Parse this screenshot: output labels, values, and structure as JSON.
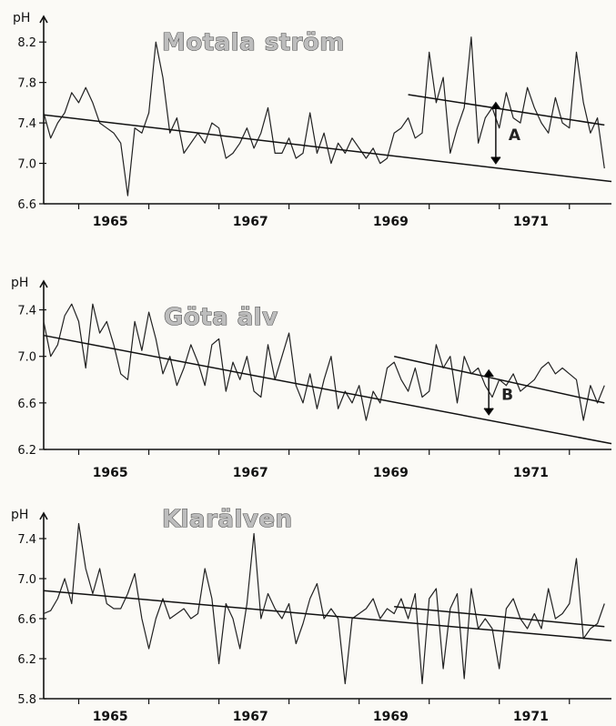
{
  "chart_data": [
    {
      "type": "line",
      "title": "Motala ström",
      "ylabel": "pH",
      "ylim": [
        6.6,
        8.4
      ],
      "yticks": [
        6.6,
        7.0,
        7.4,
        7.8,
        8.2
      ],
      "ytick_labels": [
        "6.6",
        "7.0",
        "7.4",
        "7.8",
        "8.2"
      ],
      "xlim": [
        1964.5,
        1972.6
      ],
      "xticks": [
        1965,
        1967,
        1969,
        1971
      ],
      "xtick_labels": [
        "1965",
        "1967",
        "1969",
        "1971"
      ],
      "series": [
        {
          "x": [
            1964.5,
            1964.6,
            1964.7,
            1964.8,
            1964.9,
            1965.0,
            1965.1,
            1965.2,
            1965.3,
            1965.4,
            1965.5,
            1965.6,
            1965.7,
            1965.8,
            1965.9,
            1966.0,
            1966.1,
            1966.2,
            1966.3,
            1966.4,
            1966.5,
            1966.6,
            1966.7,
            1966.8,
            1966.9,
            1967.0,
            1967.1,
            1967.2,
            1967.3,
            1967.4,
            1967.5,
            1967.6,
            1967.7,
            1967.8,
            1967.9,
            1968.0,
            1968.1,
            1968.2,
            1968.3,
            1968.4,
            1968.5,
            1968.6,
            1968.7,
            1968.8,
            1968.9,
            1969.0,
            1969.1,
            1969.2,
            1969.3,
            1969.4,
            1969.5,
            1969.6,
            1969.7,
            1969.8,
            1969.9,
            1970.0,
            1970.1,
            1970.2,
            1970.3,
            1970.4,
            1970.5,
            1970.6,
            1970.7,
            1970.8,
            1970.9,
            1971.0,
            1971.1,
            1971.2,
            1971.3,
            1971.4,
            1971.5,
            1971.6,
            1971.7,
            1971.8,
            1971.9,
            1972.0,
            1972.1,
            1972.2,
            1972.3,
            1972.4,
            1972.5
          ],
          "y": [
            7.5,
            7.25,
            7.4,
            7.5,
            7.7,
            7.6,
            7.75,
            7.6,
            7.4,
            7.35,
            7.3,
            7.2,
            6.68,
            7.35,
            7.3,
            7.5,
            8.2,
            7.85,
            7.3,
            7.45,
            7.1,
            7.2,
            7.3,
            7.2,
            7.4,
            7.35,
            7.05,
            7.1,
            7.2,
            7.35,
            7.15,
            7.3,
            7.55,
            7.1,
            7.1,
            7.25,
            7.05,
            7.1,
            7.5,
            7.1,
            7.3,
            7.0,
            7.2,
            7.1,
            7.25,
            7.15,
            7.05,
            7.15,
            7.0,
            7.05,
            7.3,
            7.35,
            7.45,
            7.25,
            7.3,
            8.1,
            7.6,
            7.85,
            7.1,
            7.35,
            7.55,
            8.25,
            7.2,
            7.45,
            7.55,
            7.35,
            7.7,
            7.45,
            7.4,
            7.75,
            7.55,
            7.4,
            7.3,
            7.65,
            7.4,
            7.35,
            8.1,
            7.6,
            7.3,
            7.45,
            6.95
          ]
        }
      ],
      "trend_lines": [
        {
          "x": [
            1964.5,
            1972.6
          ],
          "y": [
            7.48,
            6.82
          ]
        },
        {
          "x": [
            1969.7,
            1972.5
          ],
          "y": [
            7.68,
            7.38
          ]
        }
      ],
      "annotation": {
        "label": "A",
        "x": 1970.95,
        "y_top": 7.6,
        "y_bottom": 7.0
      }
    },
    {
      "type": "line",
      "title": "Göta älv",
      "ylabel": "pH",
      "ylim": [
        6.2,
        7.6
      ],
      "yticks": [
        6.2,
        6.6,
        7.0,
        7.4
      ],
      "ytick_labels": [
        "6.2",
        "6.6",
        "7.0",
        "7.4"
      ],
      "xlim": [
        1964.5,
        1972.6
      ],
      "xticks": [
        1965,
        1967,
        1969,
        1971
      ],
      "xtick_labels": [
        "1965",
        "1967",
        "1969",
        "1971"
      ],
      "series": [
        {
          "x": [
            1964.5,
            1964.6,
            1964.7,
            1964.8,
            1964.9,
            1965.0,
            1965.1,
            1965.2,
            1965.3,
            1965.4,
            1965.5,
            1965.6,
            1965.7,
            1965.8,
            1965.9,
            1966.0,
            1966.1,
            1966.2,
            1966.3,
            1966.4,
            1966.5,
            1966.6,
            1966.7,
            1966.8,
            1966.9,
            1967.0,
            1967.1,
            1967.2,
            1967.3,
            1967.4,
            1967.5,
            1967.6,
            1967.7,
            1967.8,
            1967.9,
            1968.0,
            1968.1,
            1968.2,
            1968.3,
            1968.4,
            1968.5,
            1968.6,
            1968.7,
            1968.8,
            1968.9,
            1969.0,
            1969.1,
            1969.2,
            1969.3,
            1969.4,
            1969.5,
            1969.6,
            1969.7,
            1969.8,
            1969.9,
            1970.0,
            1970.1,
            1970.2,
            1970.3,
            1970.4,
            1970.5,
            1970.6,
            1970.7,
            1970.8,
            1970.9,
            1971.0,
            1971.1,
            1971.2,
            1971.3,
            1971.4,
            1971.5,
            1971.6,
            1971.7,
            1971.8,
            1971.9,
            1972.0,
            1972.1,
            1972.2,
            1972.3,
            1972.4,
            1972.5
          ],
          "y": [
            7.3,
            7.0,
            7.1,
            7.35,
            7.45,
            7.3,
            6.9,
            7.45,
            7.2,
            7.3,
            7.1,
            6.85,
            6.8,
            7.3,
            7.05,
            7.38,
            7.15,
            6.85,
            7.0,
            6.75,
            6.9,
            7.1,
            6.95,
            6.75,
            7.1,
            7.15,
            6.7,
            6.95,
            6.8,
            7.0,
            6.7,
            6.65,
            7.1,
            6.8,
            7.0,
            7.2,
            6.75,
            6.6,
            6.85,
            6.55,
            6.8,
            7.0,
            6.55,
            6.7,
            6.6,
            6.75,
            6.45,
            6.7,
            6.6,
            6.9,
            6.95,
            6.8,
            6.7,
            6.9,
            6.65,
            6.7,
            7.1,
            6.9,
            7.0,
            6.6,
            7.0,
            6.85,
            6.9,
            6.75,
            6.65,
            6.8,
            6.75,
            6.85,
            6.7,
            6.75,
            6.8,
            6.9,
            6.95,
            6.85,
            6.9,
            6.85,
            6.8,
            6.45,
            6.75,
            6.6,
            6.75
          ]
        }
      ],
      "trend_lines": [
        {
          "x": [
            1964.5,
            1972.6
          ],
          "y": [
            7.18,
            6.25
          ]
        },
        {
          "x": [
            1969.5,
            1972.5
          ],
          "y": [
            7.0,
            6.6
          ]
        }
      ],
      "annotation": {
        "label": "B",
        "x": 1970.85,
        "y_top": 6.88,
        "y_bottom": 6.5
      }
    },
    {
      "type": "line",
      "title": "Klarälven",
      "ylabel": "pH",
      "ylim": [
        5.8,
        7.6
      ],
      "yticks": [
        5.8,
        6.2,
        6.6,
        7.0,
        7.4
      ],
      "ytick_labels": [
        "5.8",
        "6.2",
        "6.6",
        "7.0",
        "7.4"
      ],
      "xlim": [
        1964.5,
        1972.6
      ],
      "xticks": [
        1965,
        1967,
        1969,
        1971
      ],
      "xtick_labels": [
        "1965",
        "1967",
        "1969",
        "1971"
      ],
      "series": [
        {
          "x": [
            1964.5,
            1964.6,
            1964.7,
            1964.8,
            1964.9,
            1965.0,
            1965.1,
            1965.2,
            1965.3,
            1965.4,
            1965.5,
            1965.6,
            1965.7,
            1965.8,
            1965.9,
            1966.0,
            1966.1,
            1966.2,
            1966.3,
            1966.4,
            1966.5,
            1966.6,
            1966.7,
            1966.8,
            1966.9,
            1967.0,
            1967.1,
            1967.2,
            1967.3,
            1967.4,
            1967.5,
            1967.6,
            1967.7,
            1967.8,
            1967.9,
            1968.0,
            1968.1,
            1968.2,
            1968.3,
            1968.4,
            1968.5,
            1968.6,
            1968.7,
            1968.8,
            1968.9,
            1969.0,
            1969.1,
            1969.2,
            1969.3,
            1969.4,
            1969.5,
            1969.6,
            1969.7,
            1969.8,
            1969.9,
            1970.0,
            1970.1,
            1970.2,
            1970.3,
            1970.4,
            1970.5,
            1970.6,
            1970.7,
            1970.8,
            1970.9,
            1971.0,
            1971.1,
            1971.2,
            1971.3,
            1971.4,
            1971.5,
            1971.6,
            1971.7,
            1971.8,
            1971.9,
            1972.0,
            1972.1,
            1972.2,
            1972.3,
            1972.4,
            1972.5
          ],
          "y": [
            6.65,
            6.68,
            6.8,
            7.0,
            6.75,
            7.55,
            7.1,
            6.85,
            7.1,
            6.75,
            6.7,
            6.7,
            6.85,
            7.05,
            6.6,
            6.3,
            6.6,
            6.8,
            6.6,
            6.65,
            6.7,
            6.6,
            6.65,
            7.1,
            6.8,
            6.15,
            6.75,
            6.6,
            6.3,
            6.75,
            7.45,
            6.6,
            6.85,
            6.7,
            6.6,
            6.75,
            6.35,
            6.55,
            6.8,
            6.95,
            6.6,
            6.7,
            6.6,
            5.95,
            6.6,
            6.65,
            6.7,
            6.8,
            6.6,
            6.7,
            6.65,
            6.8,
            6.6,
            6.85,
            5.95,
            6.8,
            6.9,
            6.1,
            6.7,
            6.85,
            6.0,
            6.9,
            6.5,
            6.6,
            6.5,
            6.1,
            6.7,
            6.8,
            6.6,
            6.5,
            6.65,
            6.5,
            6.9,
            6.6,
            6.65,
            6.75,
            7.2,
            6.4,
            6.5,
            6.55,
            6.75
          ]
        }
      ],
      "trend_lines": [
        {
          "x": [
            1964.5,
            1972.6
          ],
          "y": [
            6.88,
            6.38
          ]
        },
        {
          "x": [
            1969.5,
            1972.5
          ],
          "y": [
            6.72,
            6.52
          ]
        }
      ]
    }
  ]
}
